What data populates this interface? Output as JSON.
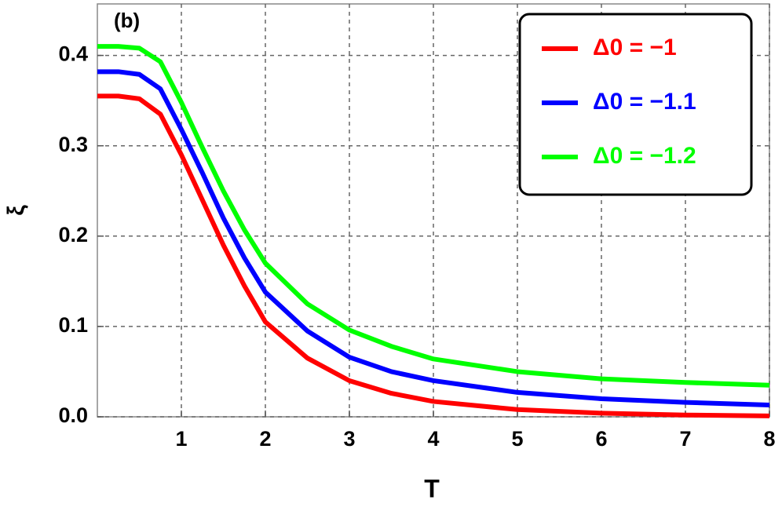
{
  "chart_data": {
    "type": "line",
    "panel_label": "(b)",
    "xlabel": "T",
    "ylabel": "ξ",
    "xlim": [
      0,
      8
    ],
    "ylim": [
      0,
      0.457
    ],
    "xticks": [
      1,
      2,
      3,
      4,
      5,
      6,
      7,
      8
    ],
    "yticks": [
      {
        "value": 0,
        "label": "0.0"
      },
      0.1,
      0.2,
      0.3,
      0.4
    ],
    "grid": true,
    "legend": "top-right",
    "x": [
      0,
      0.25,
      0.5,
      0.75,
      1,
      1.25,
      1.5,
      1.75,
      2,
      2.5,
      3,
      3.5,
      4,
      5,
      6,
      7,
      8
    ],
    "series": [
      {
        "name": "Δ0 = −1",
        "color": "#ff0000",
        "values": [
          0.355,
          0.355,
          0.352,
          0.335,
          0.29,
          0.24,
          0.19,
          0.145,
          0.105,
          0.065,
          0.04,
          0.026,
          0.017,
          0.008,
          0.004,
          0.002,
          0.001
        ]
      },
      {
        "name": "Δ0 = −1.1",
        "color": "#0000ff",
        "values": [
          0.382,
          0.382,
          0.379,
          0.363,
          0.318,
          0.27,
          0.22,
          0.176,
          0.138,
          0.095,
          0.066,
          0.05,
          0.04,
          0.027,
          0.02,
          0.016,
          0.013
        ]
      },
      {
        "name": "Δ0 = −1.2",
        "color": "#00ff00",
        "values": [
          0.41,
          0.41,
          0.408,
          0.393,
          0.348,
          0.298,
          0.25,
          0.207,
          0.17,
          0.125,
          0.096,
          0.078,
          0.064,
          0.05,
          0.042,
          0.038,
          0.035
        ]
      }
    ]
  }
}
